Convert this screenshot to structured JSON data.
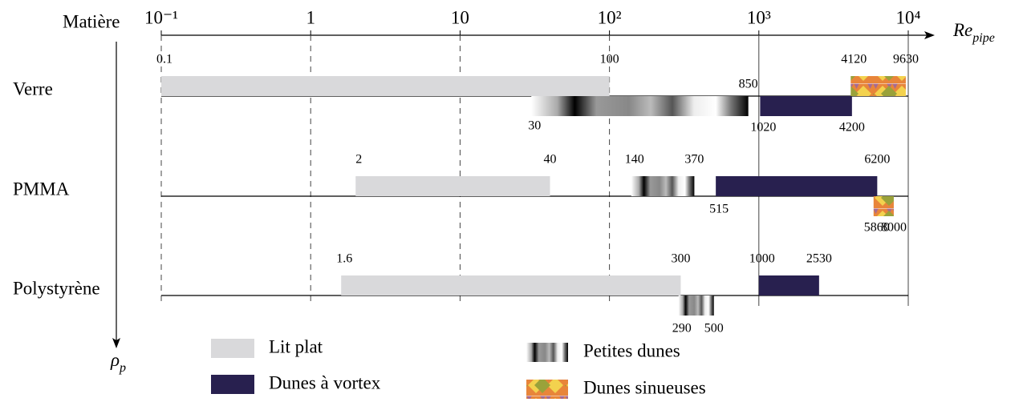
{
  "chart_data": {
    "type": "range",
    "category_label": "Matière",
    "xlabel": {
      "main": "Re",
      "sub": "pipe"
    },
    "ylabel": {
      "main": "ρ",
      "sub": "p"
    },
    "xscale": "log",
    "xlim": [
      0.1,
      10000
    ],
    "xticks": [
      {
        "value": 0.1,
        "label": "10⁻¹"
      },
      1,
      10,
      {
        "value": 100,
        "label": "10²"
      },
      {
        "value": 1000,
        "label": "10³"
      },
      {
        "value": 10000,
        "label": "10⁴"
      }
    ],
    "grid": true,
    "categories": [
      "Verre",
      "PMMA",
      "Polystyrène"
    ],
    "series": [
      {
        "name": "Lit plat",
        "color": "#d9d9db",
        "values": [
          [
            0.1,
            100
          ],
          [
            2,
            40
          ],
          [
            1.6,
            300
          ]
        ]
      },
      {
        "name": "Dunes à vortex",
        "color": "#28204f",
        "values": [
          [
            1020,
            4200
          ],
          [
            515,
            6200
          ],
          [
            1000,
            2530
          ]
        ]
      },
      {
        "name": "Petites dunes",
        "color": "#000000",
        "values": [
          [
            30,
            850
          ],
          [
            140,
            370
          ],
          [
            290,
            500
          ]
        ]
      },
      {
        "name": "Dunes sinueuses",
        "color": "#f3d24e",
        "values": [
          [
            4120,
            9630
          ],
          [
            5860,
            8000
          ],
          null
        ]
      }
    ]
  }
}
